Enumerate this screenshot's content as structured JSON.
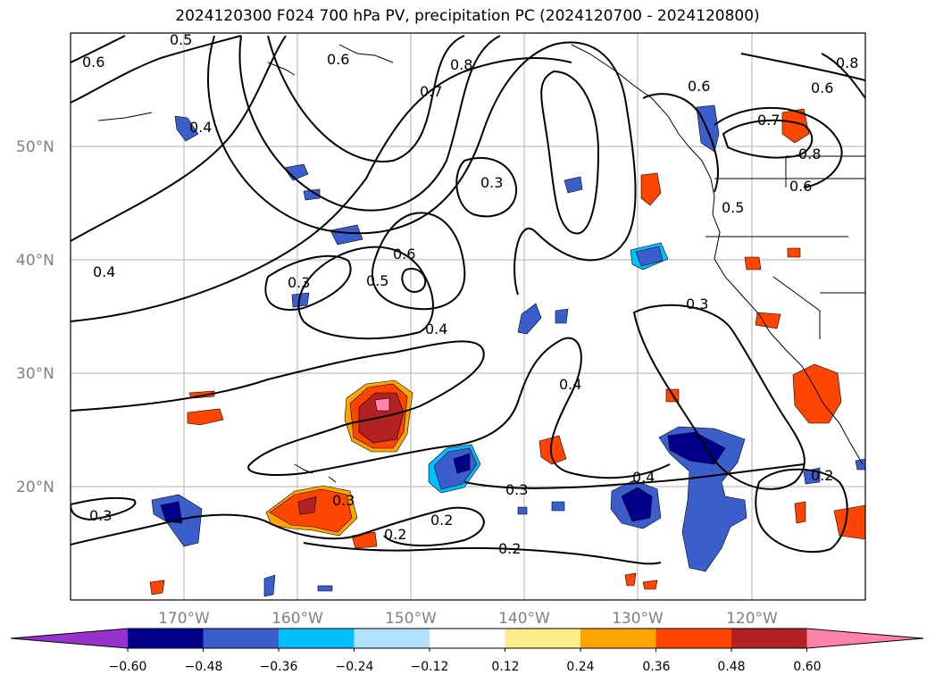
{
  "title": "2024120300 F024 700 hPa PV, precipitation PC (2024120700 - 2024120800)",
  "map": {
    "lon_range": [
      -180,
      -110
    ],
    "lat_range": [
      10,
      60
    ],
    "lat_ticks": [
      "50°N",
      "40°N",
      "30°N",
      "20°N"
    ],
    "lon_ticks": [
      "170°W",
      "160°W",
      "150°W",
      "140°W",
      "130°W",
      "120°W"
    ],
    "grid": true
  },
  "colorbar": {
    "tick_labels": [
      "−0.60",
      "−0.48",
      "−0.36",
      "−0.24",
      "−0.12",
      "0.12",
      "0.24",
      "0.36",
      "0.48",
      "0.60"
    ],
    "colors": [
      "#9932cc",
      "#00008b",
      "#3a5fcd",
      "#00bfff",
      "#b0e2ff",
      "#ffffff",
      "#ffec8b",
      "#ffa500",
      "#ff4500",
      "#b22222",
      "#ff82ab"
    ],
    "extend": "both"
  },
  "contour_labels": [
    "0.6",
    "0.5",
    "0.4",
    "0.7",
    "0.8",
    "0.6",
    "0.7",
    "0.8",
    "0.6",
    "0.6",
    "0.5",
    "0.3",
    "0.4",
    "0.3",
    "0.5",
    "0.6",
    "0.4",
    "0.3",
    "0.4",
    "0.3",
    "0.4",
    "0.2",
    "0.3",
    "0.3",
    "0.2",
    "0.2",
    "0.2",
    "0.8",
    "0.6"
  ]
}
